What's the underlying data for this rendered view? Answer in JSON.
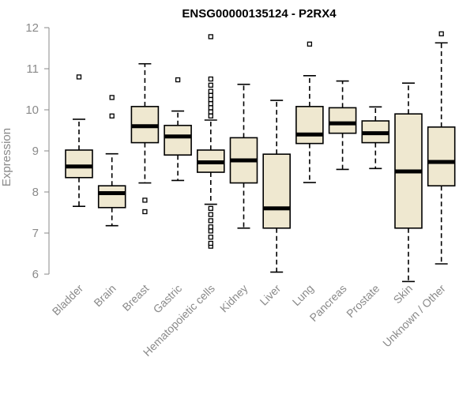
{
  "chart_data": {
    "type": "box",
    "title": "ENSG00000135124 - P2RX4",
    "xlabel": "",
    "ylabel": "Expression",
    "ylim": [
      5.8,
      12.0
    ],
    "yticks": [
      6,
      7,
      8,
      9,
      10,
      11,
      12
    ],
    "box_fill": "#efe8d0",
    "categories": [
      "Bladder",
      "Brain",
      "Breast",
      "Gastric",
      "Hematopoietic cells",
      "Kidney",
      "Liver",
      "Lung",
      "Pancreas",
      "Prostate",
      "Skin",
      "Unknown / Other"
    ],
    "boxes": [
      {
        "whisker_low": 7.65,
        "q1": 8.35,
        "median": 8.62,
        "q3": 9.02,
        "whisker_high": 9.77,
        "outliers": [
          10.8
        ]
      },
      {
        "whisker_low": 7.18,
        "q1": 7.62,
        "median": 7.97,
        "q3": 8.15,
        "whisker_high": 8.93,
        "outliers": [
          9.85,
          10.3
        ]
      },
      {
        "whisker_low": 8.22,
        "q1": 9.2,
        "median": 9.6,
        "q3": 10.08,
        "whisker_high": 11.12,
        "outliers": [
          7.52,
          7.8
        ]
      },
      {
        "whisker_low": 8.28,
        "q1": 8.9,
        "median": 9.35,
        "q3": 9.62,
        "whisker_high": 9.97,
        "outliers": [
          10.73
        ]
      },
      {
        "whisker_low": 7.7,
        "q1": 8.48,
        "median": 8.72,
        "q3": 9.02,
        "whisker_high": 9.75,
        "outliers": [
          6.68,
          6.75,
          6.9,
          7.05,
          7.15,
          7.3,
          7.45,
          7.6,
          9.85,
          9.95,
          10.05,
          10.15,
          10.25,
          10.35,
          10.45,
          10.6,
          10.75,
          11.78
        ]
      },
      {
        "whisker_low": 7.12,
        "q1": 8.22,
        "median": 8.77,
        "q3": 9.32,
        "whisker_high": 10.62,
        "outliers": []
      },
      {
        "whisker_low": 6.05,
        "q1": 7.12,
        "median": 7.6,
        "q3": 8.92,
        "whisker_high": 10.23,
        "outliers": []
      },
      {
        "whisker_low": 8.23,
        "q1": 9.18,
        "median": 9.4,
        "q3": 10.08,
        "whisker_high": 10.83,
        "outliers": [
          11.6
        ]
      },
      {
        "whisker_low": 8.55,
        "q1": 9.43,
        "median": 9.67,
        "q3": 10.05,
        "whisker_high": 10.7,
        "outliers": []
      },
      {
        "whisker_low": 8.57,
        "q1": 9.2,
        "median": 9.43,
        "q3": 9.73,
        "whisker_high": 10.07,
        "outliers": []
      },
      {
        "whisker_low": 5.82,
        "q1": 7.12,
        "median": 8.5,
        "q3": 9.9,
        "whisker_high": 10.65,
        "outliers": []
      },
      {
        "whisker_low": 6.25,
        "q1": 8.15,
        "median": 8.73,
        "q3": 9.58,
        "whisker_high": 11.63,
        "outliers": [
          11.85
        ]
      }
    ]
  }
}
